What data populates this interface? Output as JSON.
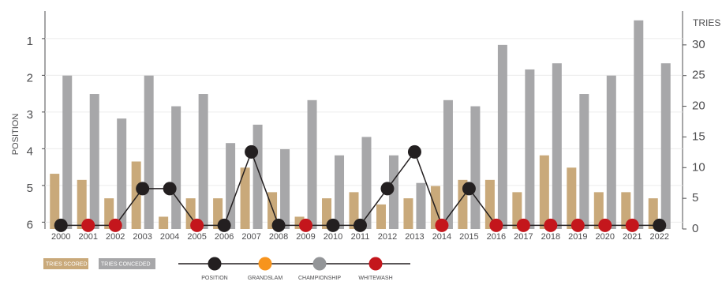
{
  "chart_data": {
    "type": "bar",
    "categories": [
      "2000",
      "2001",
      "2002",
      "2003",
      "2004",
      "2005",
      "2006",
      "2007",
      "2008",
      "2009",
      "2010",
      "2011",
      "2012",
      "2013",
      "2014",
      "2015",
      "2016",
      "2017",
      "2018",
      "2019",
      "2020",
      "2021",
      "2022"
    ],
    "series": [
      {
        "name": "TRIES SCORED",
        "color": "#c9a97a",
        "axis": "y2",
        "values": [
          9,
          8,
          5,
          11,
          2,
          5,
          5,
          10,
          6,
          2,
          5,
          6,
          4,
          5,
          7,
          8,
          8,
          6,
          12,
          10,
          6,
          6,
          5
        ]
      },
      {
        "name": "TRIES CONCEDED",
        "color": "#a7a7a9",
        "axis": "y2",
        "values": [
          25,
          22,
          18,
          25,
          20,
          22,
          14,
          17,
          13,
          21,
          12,
          15,
          12,
          7.5,
          21,
          20,
          30,
          26,
          27,
          22,
          25,
          34,
          27
        ]
      }
    ],
    "position": {
      "values": [
        6,
        6,
        6,
        5,
        5,
        6,
        6,
        4,
        6,
        6,
        6,
        6,
        5,
        4,
        6,
        5,
        6,
        6,
        6,
        6,
        6,
        6,
        6
      ],
      "color": "#231f20"
    },
    "whitewash": [
      false,
      true,
      true,
      false,
      false,
      true,
      false,
      false,
      false,
      true,
      false,
      false,
      false,
      false,
      true,
      false,
      true,
      true,
      true,
      true,
      true,
      true,
      false
    ],
    "markers": [
      {
        "name": "POSITION",
        "color": "#231f20"
      },
      {
        "name": "GRANDSLAM",
        "color": "#f7941d"
      },
      {
        "name": "CHAMPIONSHIP",
        "color": "#939598"
      },
      {
        "name": "WHITEWASH",
        "color": "#c4161c"
      }
    ],
    "ylabel": "POSITION",
    "y2label": "TRIES",
    "ylim": [
      0.25,
      6.1
    ],
    "y_inverted": true,
    "yticks": [
      1,
      2,
      3,
      4,
      5,
      6
    ],
    "y2lim": [
      0,
      35
    ],
    "y2ticks": [
      0,
      5,
      10,
      15,
      20,
      25,
      30
    ],
    "grid": true
  }
}
